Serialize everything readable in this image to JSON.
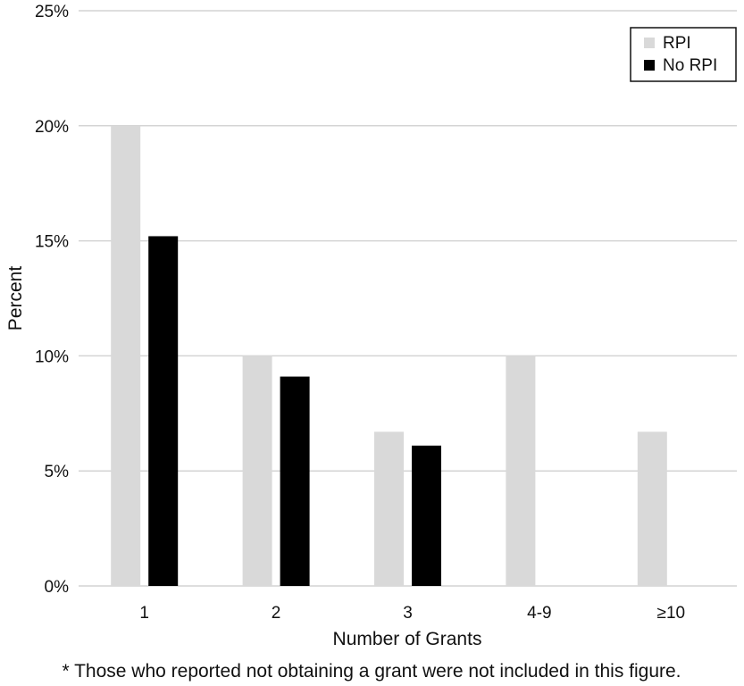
{
  "chart_data": {
    "type": "bar",
    "categories": [
      "1",
      "2",
      "3",
      "4-9",
      "≥10"
    ],
    "series": [
      {
        "name": "RPI",
        "values": [
          20,
          10,
          6.7,
          10,
          6.7
        ],
        "color": "#d9d9d9"
      },
      {
        "name": "No RPI",
        "values": [
          15.2,
          9.1,
          6.1,
          0,
          0
        ],
        "color": "#000000"
      }
    ],
    "xlabel": "Number of Grants",
    "ylabel": "Percent",
    "ylim": [
      0,
      25
    ],
    "yticks": [
      "0%",
      "5%",
      "10%",
      "15%",
      "20%",
      "25%"
    ],
    "grid": true,
    "legend_position": "top-right",
    "footnote": "* Those who reported not obtaining a grant were not included in this figure."
  }
}
